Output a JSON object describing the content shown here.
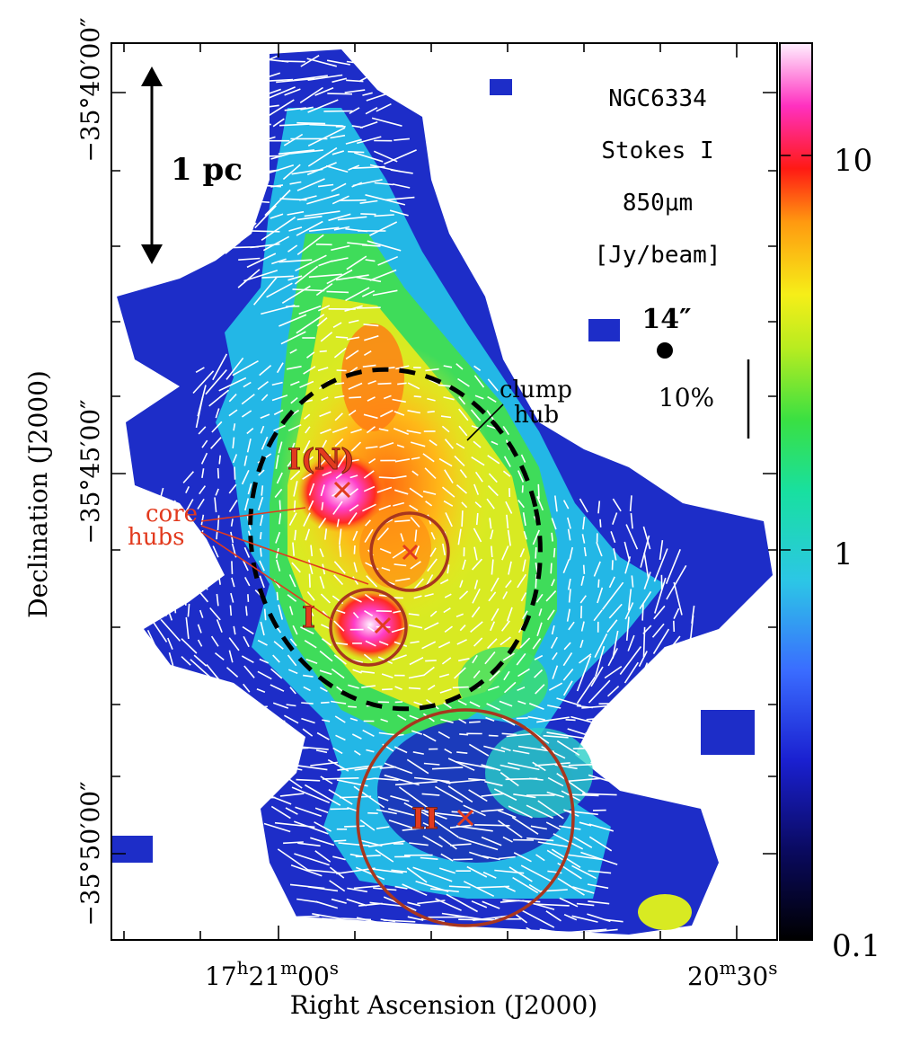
{
  "figure": {
    "object": "NGC6334",
    "stokes": "Stokes I",
    "wavelength": "850μm",
    "unit": "[Jy/beam]",
    "scalebar_label": "1 pc",
    "beam_label": "14″",
    "pol_scale_label": "10%",
    "clump_label_line1": "clump",
    "clump_label_line2": "hub",
    "core_label_line1": "core",
    "core_label_line2": "hubs",
    "source_labels": [
      "I(N)",
      "I",
      "II"
    ]
  },
  "axes": {
    "xlabel": "Right Ascension (J2000)",
    "ylabel": "Declination (J2000)",
    "x_ticks": [
      {
        "main": "17",
        "sup1": "h",
        "mid": "21",
        "sup2": "m",
        "end": "00",
        "sup3": "s"
      },
      {
        "main": "20",
        "sup1": "m",
        "mid": "30",
        "sup2": "s"
      }
    ],
    "y_ticks": [
      "−35°40′00″",
      "−35°45′00″",
      "−35°50′00″"
    ]
  },
  "colorbar": {
    "ticks": [
      "10",
      "1",
      "0.1"
    ],
    "scale": "log",
    "range": [
      0.1,
      20
    ]
  },
  "colors": {
    "marker": "#e23a1e",
    "circle": "#a8361e",
    "frame": "#000000"
  }
}
